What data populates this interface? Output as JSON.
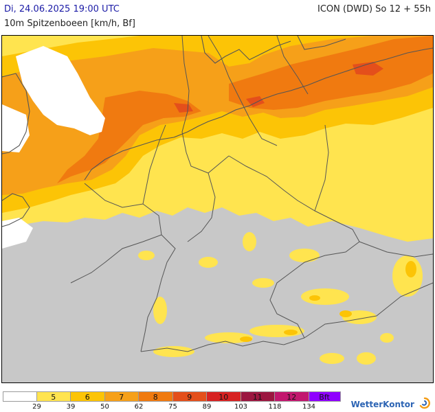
{
  "header": {
    "date_line": "Di, 24.06.2025 19:00 UTC",
    "parameter_line": "10m Spitzenboeen [km/h, Bf]",
    "model_line": "ICON (DWD) So 12 + 55h"
  },
  "legend": {
    "cells": [
      {
        "label": "",
        "color": "#ffffff"
      },
      {
        "label": "5",
        "color": "#ffe44f"
      },
      {
        "label": "6",
        "color": "#fcc406"
      },
      {
        "label": "7",
        "color": "#f6a019"
      },
      {
        "label": "8",
        "color": "#f07a10"
      },
      {
        "label": "9",
        "color": "#e44f1b"
      },
      {
        "label": "10",
        "color": "#d72222"
      },
      {
        "label": "11",
        "color": "#9b1740"
      },
      {
        "label": "12",
        "color": "#c2176e"
      },
      {
        "label": "Bft",
        "color": "#8f00ff"
      }
    ],
    "kmh_ticks": [
      "29",
      "39",
      "50",
      "62",
      "75",
      "89",
      "103",
      "118",
      "134"
    ]
  },
  "brand": {
    "name": "WetterKontor",
    "colors": {
      "text": "#2c64b4",
      "icon": "#f39a12"
    }
  },
  "map": {
    "colors": {
      "below_threshold": "#c8c8c8",
      "border_line": "#555555"
    }
  }
}
